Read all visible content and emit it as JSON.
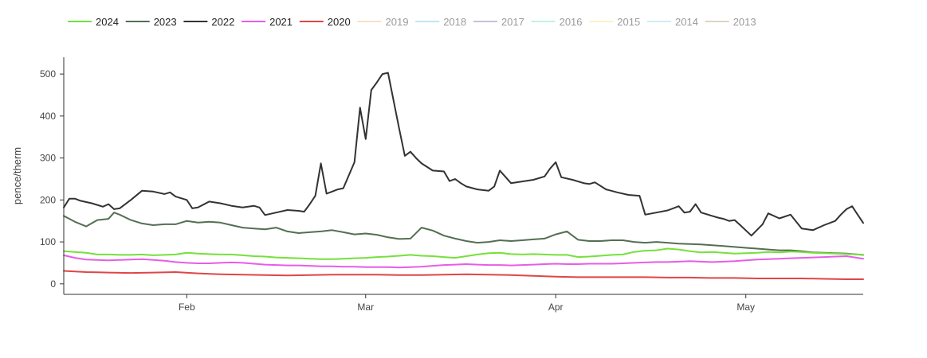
{
  "chart_data": {
    "type": "line",
    "ylabel": "pence/therm",
    "ylim": [
      -25,
      540
    ],
    "yticks": [
      0,
      100,
      200,
      300,
      400,
      500
    ],
    "xlim": [
      1,
      144
    ],
    "xticks": [
      {
        "x": 23,
        "label": "Feb"
      },
      {
        "x": 55,
        "label": "Mar"
      },
      {
        "x": 89,
        "label": "Apr"
      },
      {
        "x": 123,
        "label": "May"
      }
    ],
    "legend_position": "top-left",
    "series": [
      {
        "name": "2024",
        "color": "#76e03b",
        "visible": true,
        "x": [
          1,
          3,
          5,
          7,
          9,
          11,
          13,
          15,
          17,
          19,
          21,
          23,
          25,
          27,
          29,
          31,
          33,
          35,
          37,
          39,
          41,
          43,
          45,
          47,
          49,
          51,
          53,
          55,
          57,
          59,
          61,
          63,
          65,
          67,
          69,
          71,
          73,
          75,
          77,
          79,
          81,
          83,
          85,
          87,
          89,
          91,
          93,
          95,
          97,
          99,
          101,
          103,
          105,
          107,
          109,
          111,
          113,
          115,
          117,
          119,
          121,
          123,
          125,
          127,
          129,
          131,
          133,
          135,
          137,
          139,
          141,
          143,
          144
        ],
        "y": [
          78,
          76,
          74,
          70,
          70,
          69,
          69,
          70,
          68,
          69,
          70,
          74,
          72,
          71,
          70,
          70,
          68,
          66,
          65,
          63,
          62,
          61,
          60,
          59,
          59,
          60,
          61,
          62,
          64,
          65,
          67,
          69,
          67,
          66,
          64,
          62,
          66,
          70,
          73,
          74,
          71,
          70,
          71,
          70,
          69,
          69,
          64,
          65,
          67,
          69,
          70,
          76,
          79,
          80,
          84,
          82,
          78,
          75,
          76,
          74,
          72,
          73,
          74,
          76,
          75,
          77,
          76,
          74,
          73,
          72,
          71,
          70,
          69
        ]
      },
      {
        "name": "2023",
        "color": "#546e53",
        "visible": true,
        "x": [
          1,
          3,
          5,
          7,
          9,
          10,
          11,
          13,
          15,
          17,
          19,
          21,
          23,
          25,
          27,
          29,
          31,
          33,
          35,
          37,
          39,
          41,
          43,
          45,
          47,
          49,
          51,
          53,
          55,
          57,
          59,
          61,
          63,
          65,
          67,
          69,
          71,
          73,
          75,
          77,
          79,
          81,
          83,
          85,
          87,
          89,
          91,
          93,
          95,
          97,
          99,
          101,
          103,
          105,
          107,
          109,
          111,
          113,
          115,
          117,
          119,
          121,
          123,
          125,
          127,
          129,
          131,
          133,
          135,
          137,
          139,
          141,
          143,
          144
        ],
        "y": [
          162,
          148,
          137,
          152,
          155,
          170,
          165,
          152,
          144,
          140,
          142,
          142,
          150,
          146,
          148,
          146,
          140,
          134,
          132,
          130,
          134,
          125,
          121,
          123,
          125,
          128,
          123,
          118,
          120,
          117,
          111,
          107,
          108,
          134,
          127,
          115,
          108,
          102,
          98,
          100,
          104,
          102,
          104,
          106,
          108,
          118,
          125,
          105,
          102,
          102,
          104,
          104,
          100,
          98,
          100,
          98,
          96,
          95,
          94,
          92,
          90,
          88,
          86,
          84,
          82,
          80,
          80,
          78,
          75,
          74,
          73,
          72,
          70,
          69
        ]
      },
      {
        "name": "2022",
        "color": "#333333",
        "visible": true,
        "x": [
          1,
          2,
          3,
          4,
          6,
          8,
          9,
          10,
          11,
          13,
          15,
          17,
          19,
          20,
          21,
          22,
          23,
          24,
          25,
          27,
          29,
          31,
          33,
          35,
          36,
          37,
          39,
          41,
          43,
          44,
          45,
          46,
          47,
          48,
          49,
          50,
          51,
          53,
          54,
          55,
          56,
          57,
          58,
          59,
          61,
          62,
          63,
          64,
          65,
          67,
          69,
          70,
          71,
          72,
          73,
          75,
          77,
          78,
          79,
          81,
          83,
          85,
          87,
          88,
          89,
          90,
          92,
          94,
          95,
          96,
          98,
          100,
          102,
          104,
          105,
          107,
          109,
          110,
          111,
          112,
          113,
          114,
          115,
          117,
          118,
          119,
          120,
          121,
          122,
          124,
          126,
          127,
          129,
          131,
          133,
          134,
          135,
          137,
          139,
          140,
          141,
          142,
          143,
          144
        ],
        "y": [
          182,
          203,
          203,
          198,
          192,
          184,
          190,
          178,
          180,
          200,
          222,
          220,
          214,
          218,
          208,
          204,
          200,
          180,
          182,
          196,
          192,
          186,
          182,
          186,
          182,
          164,
          170,
          176,
          174,
          172,
          190,
          210,
          287,
          215,
          220,
          225,
          228,
          290,
          420,
          345,
          462,
          480,
          500,
          503,
          370,
          305,
          315,
          300,
          287,
          270,
          268,
          245,
          250,
          240,
          232,
          225,
          222,
          232,
          270,
          240,
          244,
          248,
          256,
          275,
          290,
          254,
          248,
          240,
          238,
          242,
          225,
          218,
          212,
          210,
          165,
          170,
          175,
          180,
          185,
          170,
          172,
          190,
          170,
          162,
          158,
          155,
          150,
          152,
          140,
          115,
          142,
          168,
          156,
          165,
          132,
          130,
          128,
          140,
          150,
          165,
          178,
          185,
          165,
          145
        ]
      },
      {
        "name": "2021",
        "color": "#e85ce8",
        "visible": true,
        "x": [
          1,
          3,
          5,
          7,
          9,
          11,
          13,
          15,
          17,
          19,
          21,
          23,
          25,
          27,
          29,
          31,
          33,
          35,
          37,
          39,
          41,
          43,
          45,
          47,
          49,
          51,
          53,
          55,
          57,
          59,
          61,
          63,
          65,
          67,
          69,
          71,
          73,
          75,
          77,
          79,
          81,
          83,
          85,
          87,
          89,
          91,
          93,
          95,
          97,
          99,
          101,
          103,
          105,
          107,
          109,
          111,
          113,
          115,
          117,
          119,
          121,
          123,
          125,
          127,
          129,
          131,
          133,
          135,
          137,
          139,
          141,
          143,
          144
        ],
        "y": [
          68,
          62,
          58,
          57,
          56,
          57,
          58,
          59,
          57,
          55,
          52,
          50,
          49,
          49,
          50,
          51,
          50,
          48,
          46,
          45,
          44,
          44,
          43,
          42,
          42,
          41,
          41,
          40,
          40,
          40,
          39,
          40,
          41,
          43,
          45,
          46,
          47,
          46,
          45,
          45,
          44,
          45,
          46,
          47,
          48,
          47,
          47,
          48,
          48,
          48,
          49,
          50,
          51,
          52,
          52,
          53,
          54,
          53,
          52,
          53,
          54,
          56,
          58,
          59,
          60,
          61,
          62,
          63,
          64,
          65,
          66,
          62,
          60
        ]
      },
      {
        "name": "2020",
        "color": "#e04545",
        "visible": true,
        "x": [
          1,
          5,
          9,
          13,
          17,
          21,
          25,
          29,
          33,
          37,
          41,
          45,
          49,
          53,
          57,
          61,
          65,
          69,
          73,
          77,
          81,
          85,
          89,
          93,
          97,
          101,
          105,
          109,
          113,
          117,
          121,
          125,
          129,
          133,
          137,
          141,
          144
        ],
        "y": [
          31,
          28,
          27,
          26,
          27,
          28,
          25,
          23,
          22,
          21,
          20,
          21,
          22,
          22,
          22,
          21,
          21,
          22,
          23,
          22,
          21,
          19,
          17,
          16,
          16,
          16,
          16,
          15,
          15,
          14,
          14,
          13,
          13,
          13,
          12,
          11,
          11
        ]
      },
      {
        "name": "2019",
        "color": "#f4c79a",
        "visible": false
      },
      {
        "name": "2018",
        "color": "#8ed0f4",
        "visible": false
      },
      {
        "name": "2017",
        "color": "#9a8fb5",
        "visible": false
      },
      {
        "name": "2016",
        "color": "#8ee8d8",
        "visible": false
      },
      {
        "name": "2015",
        "color": "#f8e89a",
        "visible": false
      },
      {
        "name": "2014",
        "color": "#a8e0ec",
        "visible": false
      },
      {
        "name": "2013",
        "color": "#c8b094",
        "visible": false
      }
    ]
  }
}
